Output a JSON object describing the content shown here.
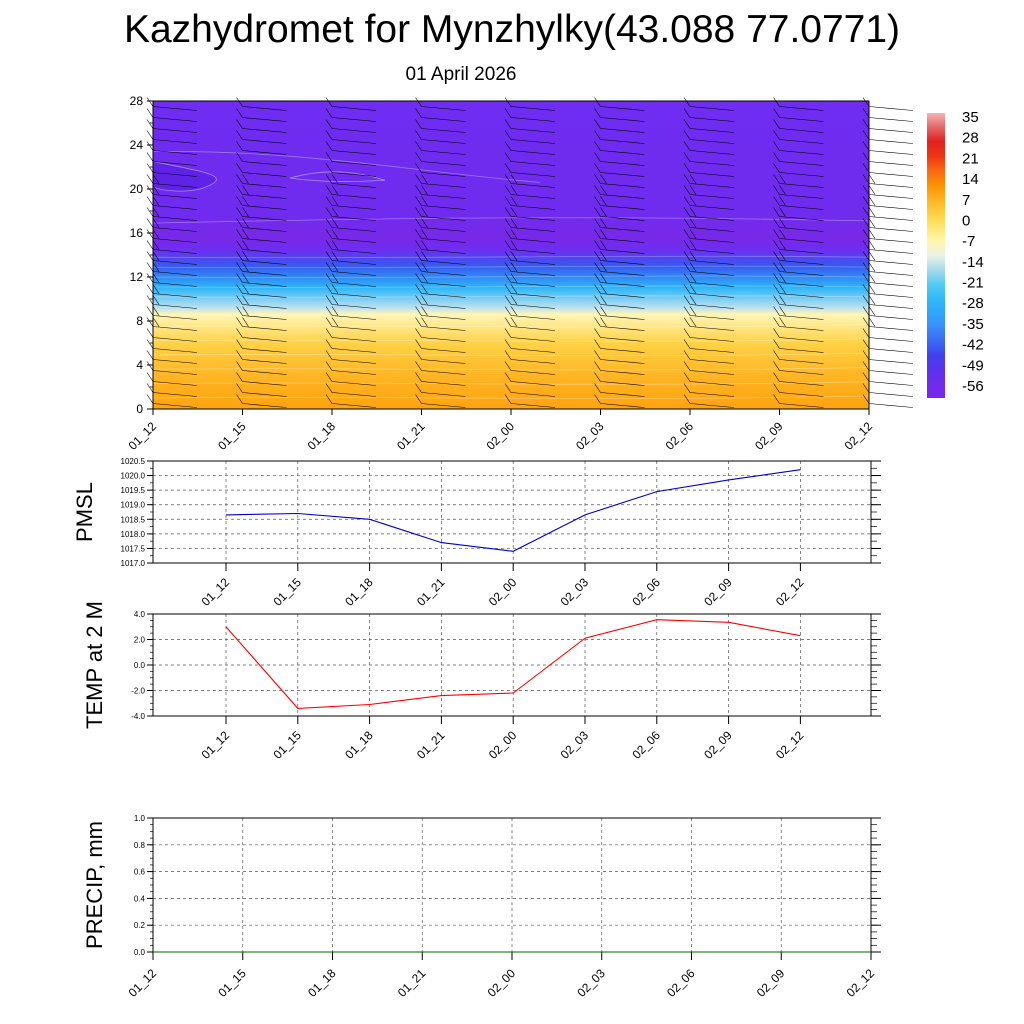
{
  "title": "Kazhydromet for Mynzhylky(43.088 77.0771)",
  "subtitle": "01 April 2026",
  "chart_data": [
    {
      "type": "heatmap",
      "name": "temperature-profile",
      "x_ticks": [
        "01_12",
        "01_15",
        "01_18",
        "01_21",
        "02_00",
        "02_03",
        "02_06",
        "02_09",
        "02_12"
      ],
      "y_ticks": [
        "0",
        "4",
        "8",
        "12",
        "16",
        "20",
        "24",
        "28"
      ],
      "ylim": [
        0,
        28
      ],
      "colorbar": {
        "labels": [
          "35",
          "28",
          "21",
          "14",
          "7",
          "0",
          "-7",
          "-14",
          "-21",
          "-28",
          "-35",
          "-42",
          "-49",
          "-56"
        ],
        "range": [
          -63,
          38
        ]
      },
      "temperature_profile_by_height": [
        {
          "h": 0,
          "t": 10
        },
        {
          "h": 3,
          "t": 7
        },
        {
          "h": 6,
          "t": 2
        },
        {
          "h": 8.6,
          "t": -8
        },
        {
          "h": 9.2,
          "t": -16
        },
        {
          "h": 11,
          "t": -29
        },
        {
          "h": 13,
          "t": -45
        },
        {
          "h": 14.5,
          "t": -56
        },
        {
          "h": 15.5,
          "t": -62
        },
        {
          "h": 16.5,
          "t": -60
        },
        {
          "h": 18,
          "t": -57
        },
        {
          "h": 22,
          "t": -57
        },
        {
          "h": 28,
          "t": -56
        }
      ],
      "wind_barbs": "shown"
    },
    {
      "type": "line",
      "name": "pmsl",
      "ylabel": "PMSL",
      "x": [
        "01_12",
        "01_15",
        "01_18",
        "01_21",
        "02_00",
        "02_03",
        "02_06",
        "02_09",
        "02_12"
      ],
      "y_ticks": [
        "1017.0",
        "1017.5",
        "1018.0",
        "1018.5",
        "1019.0",
        "1019.5",
        "1020.0",
        "1020.5"
      ],
      "ylim": [
        1017.0,
        1020.5
      ],
      "values": [
        1018.65,
        1018.7,
        1018.5,
        1017.7,
        1017.4,
        1018.65,
        1019.45,
        1019.85,
        1020.2
      ],
      "color": "#0000cc",
      "grid": true
    },
    {
      "type": "line",
      "name": "temp-2m",
      "ylabel": "TEMP at 2 M",
      "x": [
        "01_12",
        "01_15",
        "01_18",
        "01_21",
        "02_00",
        "02_03",
        "02_06",
        "02_09",
        "02_12"
      ],
      "y_ticks": [
        "-4.0",
        "-2.0",
        "0.0",
        "2.0",
        "4.0"
      ],
      "ylim": [
        -4.0,
        4.0
      ],
      "values": [
        3.0,
        -3.4,
        -3.1,
        -2.4,
        -2.2,
        2.1,
        3.55,
        3.35,
        2.3
      ],
      "color": "#ff0000",
      "grid": true
    },
    {
      "type": "line",
      "name": "precip",
      "ylabel": "PRECIP, mm",
      "x": [
        "01_12",
        "01_15",
        "01_18",
        "01_21",
        "02_00",
        "02_03",
        "02_06",
        "02_09",
        "02_12"
      ],
      "y_ticks": [
        "0.0",
        "0.2",
        "0.4",
        "0.6",
        "0.8",
        "1.0"
      ],
      "ylim": [
        0.0,
        1.0
      ],
      "values": [
        0,
        0,
        0,
        0,
        0,
        0,
        0,
        0,
        0
      ],
      "color": "#006400",
      "grid": true
    }
  ]
}
